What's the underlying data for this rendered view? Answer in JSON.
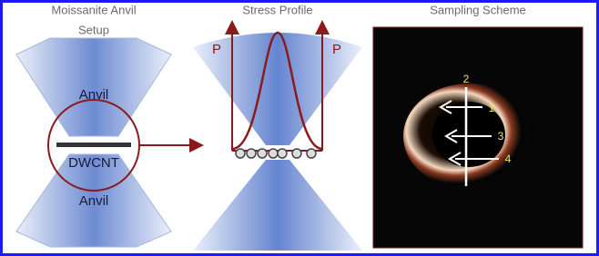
{
  "panels": [
    {
      "title_lines": [
        "Moissanite Anvil",
        "Setup"
      ],
      "labels": [
        "Anvil",
        "DWCNT",
        "Anvil"
      ]
    },
    {
      "title_lines": [
        "Stress Profile"
      ],
      "labels": [
        "P",
        "P"
      ]
    },
    {
      "title_lines": [
        "Sampling Scheme"
      ],
      "labels": [
        "2",
        "1",
        "3",
        "4"
      ]
    }
  ]
}
